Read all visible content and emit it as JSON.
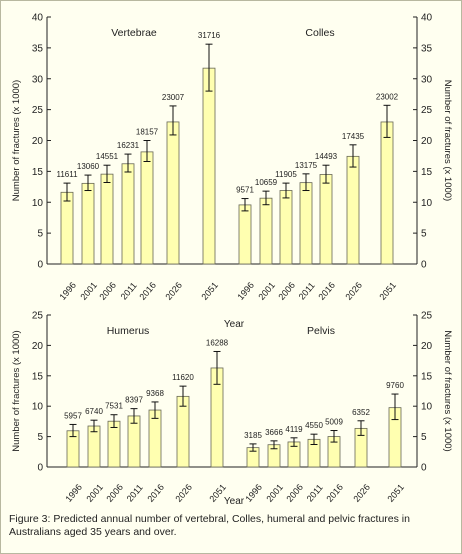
{
  "caption": "Figure 3: Predicted annual number of vertebral, Colles, humeral and pelvic fractures in Australians aged 35 years and over.",
  "colors": {
    "bar_fill": "#ffffb0",
    "bar_stroke": "#666655",
    "axis": "#222222"
  },
  "chart_data": [
    {
      "type": "bar",
      "ylabel": "Number of fractures (x 1000)",
      "ylabel_right": "Number of fractures (x 1000)",
      "xlabel": "Year",
      "ylim": [
        0,
        40
      ],
      "yticks": [
        0,
        5,
        10,
        15,
        20,
        25,
        30,
        35,
        40
      ],
      "groups": [
        {
          "name": "Vertebrae",
          "categories": [
            "1996",
            "2001",
            "2006",
            "2011",
            "2016",
            "2026",
            "2051"
          ],
          "values": [
            11.611,
            13.06,
            14.551,
            16.231,
            18.157,
            23.007,
            31.716
          ],
          "labels": [
            "11611",
            "13060",
            "14551",
            "16231",
            "18157",
            "23007",
            "31716"
          ],
          "err_low": [
            10.2,
            11.9,
            13.2,
            14.9,
            16.6,
            20.9,
            28.0
          ],
          "err_high": [
            13.1,
            14.4,
            16.0,
            17.8,
            20.0,
            25.6,
            35.6
          ]
        },
        {
          "name": "Colles",
          "categories": [
            "1996",
            "2001",
            "2006",
            "2011",
            "2016",
            "2026",
            "2051"
          ],
          "values": [
            9.571,
            10.659,
            11.905,
            13.175,
            14.493,
            17.435,
            23.002
          ],
          "labels": [
            "9571",
            "10659",
            "11905",
            "13175",
            "14493",
            "17435",
            "23002"
          ],
          "err_low": [
            8.6,
            9.6,
            10.7,
            11.9,
            13.1,
            15.7,
            20.5
          ],
          "err_high": [
            10.6,
            11.8,
            13.1,
            14.6,
            16.0,
            19.3,
            25.7
          ]
        }
      ]
    },
    {
      "type": "bar",
      "ylabel": "Number of fractures (x 1000)",
      "ylabel_right": "Number of fractures (x 1000)",
      "xlabel": "Year",
      "ylim": [
        0,
        25
      ],
      "yticks": [
        0,
        5,
        10,
        15,
        20,
        25
      ],
      "groups": [
        {
          "name": "Humerus",
          "categories": [
            "1996",
            "2001",
            "2006",
            "2011",
            "2016",
            "2026",
            "2051"
          ],
          "values": [
            5.957,
            6.74,
            7.531,
            8.397,
            9.368,
            11.62,
            16.288
          ],
          "labels": [
            "5957",
            "6740",
            "7531",
            "8397",
            "9368",
            "11620",
            "16288"
          ],
          "err_low": [
            5.0,
            5.8,
            6.5,
            7.2,
            8.0,
            10.0,
            13.6
          ],
          "err_high": [
            7.0,
            7.7,
            8.6,
            9.6,
            10.7,
            13.3,
            19.0
          ]
        },
        {
          "name": "Pelvis",
          "categories": [
            "1996",
            "2001",
            "2006",
            "2011",
            "2016",
            "2026",
            "2051"
          ],
          "values": [
            3.185,
            3.666,
            4.119,
            4.55,
            5.009,
            6.352,
            9.76
          ],
          "labels": [
            "3185",
            "3666",
            "4119",
            "4550",
            "5009",
            "6352",
            "9760"
          ],
          "err_low": [
            2.6,
            3.0,
            3.4,
            3.7,
            4.1,
            5.2,
            7.8
          ],
          "err_high": [
            3.8,
            4.3,
            4.8,
            5.4,
            6.0,
            7.6,
            12.0
          ]
        }
      ]
    }
  ]
}
